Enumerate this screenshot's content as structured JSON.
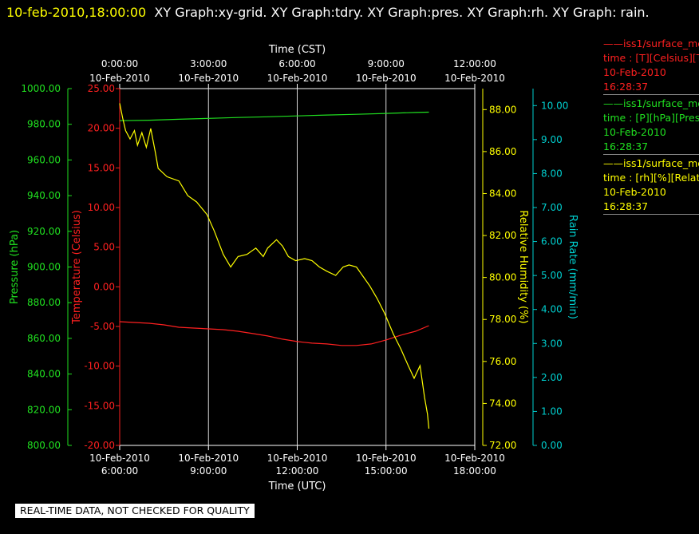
{
  "title": {
    "timestamp": "10-feb-2010,18:00:00",
    "rest": "XY Graph:xy-grid.  XY Graph:tdry.  XY Graph:pres.  XY Graph:rh.  XY Graph: rain."
  },
  "legend": [
    {
      "line1": "——iss1/surface_me",
      "line2": "time : [T][Celsius][T",
      "line3": "10-Feb-2010",
      "line4": "16:28:37",
      "color": "#ff2020"
    },
    {
      "line1": "——iss1/surface_me",
      "line2": "time : [P][hPa][Pres",
      "line3": "10-Feb-2010",
      "line4": "16:28:37",
      "color": "#20e020"
    },
    {
      "line1": "——iss1/surface_me",
      "line2": "time : [rh][%][Relati",
      "line3": "10-Feb-2010",
      "line4": "16:28:37",
      "color": "#ffff00"
    }
  ],
  "footer": "REAL-TIME DATA, NOT CHECKED FOR QUALITY",
  "chart_data": {
    "type": "line",
    "top_axis": {
      "label": "Time (CST)",
      "ticks": [
        {
          "date": "10-Feb-2010",
          "time": "0:00:00"
        },
        {
          "date": "10-Feb-2010",
          "time": "3:00:00"
        },
        {
          "date": "10-Feb-2010",
          "time": "6:00:00"
        },
        {
          "date": "10-Feb-2010",
          "time": "9:00:00"
        },
        {
          "date": "10-Feb-2010",
          "time": "12:00:00"
        }
      ]
    },
    "bottom_axis": {
      "label": "Time (UTC)",
      "ticks": [
        {
          "date": "10-Feb-2010",
          "time": "6:00:00"
        },
        {
          "date": "10-Feb-2010",
          "time": "9:00:00"
        },
        {
          "date": "10-Feb-2010",
          "time": "12:00:00"
        },
        {
          "date": "10-Feb-2010",
          "time": "15:00:00"
        },
        {
          "date": "10-Feb-2010",
          "time": "18:00:00"
        }
      ],
      "range_utc_hours": [
        6,
        18
      ]
    },
    "grid": "vertical",
    "axes": {
      "pressure": {
        "label": "Pressure (hPa)",
        "range": [
          800,
          1000
        ],
        "ticks": [
          "800.00",
          "820.00",
          "840.00",
          "860.00",
          "880.00",
          "900.00",
          "920.00",
          "940.00",
          "960.00",
          "980.00",
          "1000.00"
        ],
        "color": "#20e020"
      },
      "temperature": {
        "label": "Temperature (Celsius)",
        "range": [
          -20,
          25
        ],
        "ticks": [
          "-20.00",
          "-15.00",
          "-10.00",
          "-5.00",
          "0.00",
          "5.00",
          "10.00",
          "15.00",
          "20.00",
          "25.00"
        ],
        "color": "#ff2020"
      },
      "rh": {
        "label": "Relative Humidity (%)",
        "range": [
          72,
          89
        ],
        "ticks": [
          "72.00",
          "74.00",
          "76.00",
          "78.00",
          "80.00",
          "82.00",
          "84.00",
          "86.00",
          "88.00"
        ],
        "color": "#ffff00"
      },
      "rain": {
        "label": "Rain Rate (mm/min)",
        "range": [
          0,
          10.5
        ],
        "ticks": [
          "0.00",
          "1.00",
          "2.00",
          "3.00",
          "4.00",
          "5.00",
          "6.00",
          "7.00",
          "8.00",
          "9.00",
          "10.00"
        ],
        "color": "#00d0d0"
      }
    },
    "series": [
      {
        "axis": "pressure",
        "color": "#20e020",
        "points": [
          [
            6.0,
            982.0
          ],
          [
            7.0,
            982.3
          ],
          [
            8.0,
            982.8
          ],
          [
            9.0,
            983.3
          ],
          [
            10.0,
            983.8
          ],
          [
            11.0,
            984.2
          ],
          [
            12.0,
            984.7
          ],
          [
            13.0,
            985.2
          ],
          [
            14.0,
            985.6
          ],
          [
            15.0,
            986.1
          ],
          [
            16.0,
            986.6
          ],
          [
            16.45,
            986.8
          ]
        ]
      },
      {
        "axis": "temperature",
        "color": "#ff2020",
        "points": [
          [
            6.0,
            -4.4
          ],
          [
            6.5,
            -4.5
          ],
          [
            7.0,
            -4.6
          ],
          [
            7.5,
            -4.8
          ],
          [
            8.0,
            -5.1
          ],
          [
            8.5,
            -5.2
          ],
          [
            9.0,
            -5.3
          ],
          [
            9.5,
            -5.4
          ],
          [
            10.0,
            -5.6
          ],
          [
            10.5,
            -5.9
          ],
          [
            11.0,
            -6.2
          ],
          [
            11.5,
            -6.6
          ],
          [
            12.0,
            -6.9
          ],
          [
            12.5,
            -7.1
          ],
          [
            13.0,
            -7.2
          ],
          [
            13.5,
            -7.4
          ],
          [
            14.0,
            -7.4
          ],
          [
            14.5,
            -7.2
          ],
          [
            15.0,
            -6.7
          ],
          [
            15.5,
            -6.1
          ],
          [
            16.0,
            -5.6
          ],
          [
            16.45,
            -4.9
          ]
        ]
      },
      {
        "axis": "rh",
        "color": "#ffff00",
        "points": [
          [
            6.0,
            88.3
          ],
          [
            6.1,
            87.6
          ],
          [
            6.2,
            87.0
          ],
          [
            6.35,
            86.6
          ],
          [
            6.5,
            87.0
          ],
          [
            6.6,
            86.3
          ],
          [
            6.75,
            86.9
          ],
          [
            6.9,
            86.2
          ],
          [
            7.05,
            87.1
          ],
          [
            7.2,
            86.0
          ],
          [
            7.3,
            85.2
          ],
          [
            7.6,
            84.8
          ],
          [
            8.0,
            84.6
          ],
          [
            8.3,
            83.9
          ],
          [
            8.6,
            83.6
          ],
          [
            8.95,
            83.0
          ],
          [
            9.2,
            82.2
          ],
          [
            9.5,
            81.1
          ],
          [
            9.75,
            80.5
          ],
          [
            10.0,
            81.0
          ],
          [
            10.3,
            81.1
          ],
          [
            10.6,
            81.4
          ],
          [
            10.85,
            81.0
          ],
          [
            11.0,
            81.4
          ],
          [
            11.3,
            81.8
          ],
          [
            11.5,
            81.5
          ],
          [
            11.7,
            81.0
          ],
          [
            11.95,
            80.8
          ],
          [
            12.25,
            80.9
          ],
          [
            12.5,
            80.8
          ],
          [
            12.75,
            80.5
          ],
          [
            13.0,
            80.3
          ],
          [
            13.3,
            80.1
          ],
          [
            13.55,
            80.5
          ],
          [
            13.75,
            80.6
          ],
          [
            14.0,
            80.5
          ],
          [
            14.2,
            80.1
          ],
          [
            14.45,
            79.6
          ],
          [
            14.7,
            79.0
          ],
          [
            14.95,
            78.3
          ],
          [
            15.25,
            77.3
          ],
          [
            15.5,
            76.6
          ],
          [
            15.75,
            75.8
          ],
          [
            15.95,
            75.2
          ],
          [
            16.15,
            75.8
          ],
          [
            16.3,
            74.3
          ],
          [
            16.4,
            73.5
          ],
          [
            16.45,
            72.8
          ]
        ]
      }
    ]
  }
}
